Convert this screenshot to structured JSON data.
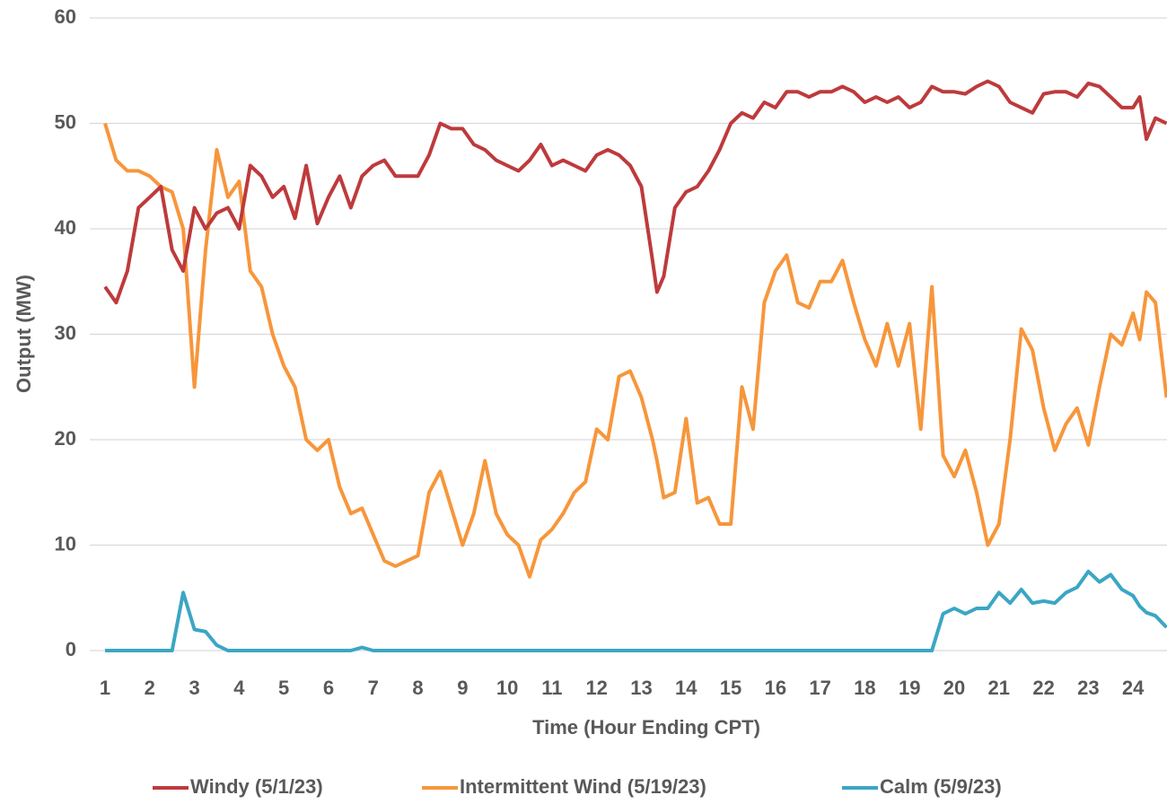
{
  "chart_data": {
    "type": "line",
    "x_label": "Time (Hour Ending CPT)",
    "y_label": "Output (MW)",
    "x": [
      1,
      1.25,
      1.5,
      1.75,
      2,
      2.25,
      2.5,
      2.75,
      3,
      3.25,
      3.5,
      3.75,
      4,
      4.25,
      4.5,
      4.75,
      5,
      5.25,
      5.5,
      5.75,
      6,
      6.25,
      6.5,
      6.75,
      7,
      7.25,
      7.5,
      7.75,
      8,
      8.25,
      8.5,
      8.75,
      9,
      9.25,
      9.5,
      9.75,
      10,
      10.25,
      10.5,
      10.75,
      11,
      11.25,
      11.5,
      11.75,
      12,
      12.25,
      12.5,
      12.75,
      13,
      13.25,
      13.35,
      13.5,
      13.75,
      14,
      14.25,
      14.5,
      14.75,
      15,
      15.25,
      15.5,
      15.75,
      16,
      16.25,
      16.5,
      16.75,
      17,
      17.25,
      17.5,
      17.75,
      18,
      18.25,
      18.5,
      18.75,
      19,
      19.25,
      19.5,
      19.75,
      20,
      20.25,
      20.5,
      20.75,
      21,
      21.25,
      21.5,
      21.75,
      22,
      22.25,
      22.5,
      22.75,
      23,
      23.25,
      23.5,
      23.75,
      24,
      24.15,
      24.3,
      24.5,
      24.75
    ],
    "series": [
      {
        "name": "Windy (5/1/23)",
        "color": "#be3a3c",
        "values": [
          34.5,
          33,
          36,
          42,
          43,
          44,
          38,
          36,
          42,
          40,
          41.5,
          42,
          40,
          46,
          45,
          43,
          44,
          41,
          46,
          40.5,
          43,
          45,
          42,
          45,
          46,
          46.5,
          45,
          45,
          45,
          47,
          50,
          49.5,
          49.5,
          48,
          47.5,
          46.5,
          46,
          45.5,
          46.5,
          48,
          46,
          46.5,
          46,
          45.5,
          47,
          47.5,
          47,
          46,
          44,
          37,
          34,
          35.5,
          42,
          43.5,
          44,
          45.5,
          47.5,
          50,
          51,
          50.5,
          52,
          51.5,
          53,
          53,
          52.5,
          53,
          53,
          53.5,
          53,
          52,
          52.5,
          52,
          52.5,
          51.5,
          52,
          53.5,
          53,
          53,
          52.8,
          53.5,
          54,
          53.5,
          52,
          51.5,
          51,
          52.8,
          53,
          53,
          52.5,
          53.8,
          53.5,
          52.5,
          51.5,
          51.5,
          52.5,
          48.5,
          50.5,
          50
        ]
      },
      {
        "name": "Intermittent Wind (5/19/23)",
        "color": "#f7963b",
        "values": [
          50,
          46.5,
          45.5,
          45.5,
          45,
          44,
          43.5,
          40,
          25,
          38,
          47.5,
          43,
          44.5,
          36,
          34.5,
          30,
          27,
          25,
          20,
          19,
          20,
          15.5,
          13,
          13.5,
          11,
          8.5,
          8,
          8.5,
          9,
          15,
          17,
          13.5,
          10,
          13,
          18,
          13,
          11,
          10,
          7,
          10.5,
          11.5,
          13,
          15,
          16,
          21,
          20,
          26,
          26.5,
          24,
          20,
          18,
          14.5,
          15,
          22,
          14,
          14.5,
          12,
          12,
          25,
          21,
          33,
          36,
          37.5,
          33,
          32.5,
          35,
          35,
          37,
          33,
          29.5,
          27,
          31,
          27,
          31,
          21,
          34.5,
          18.5,
          16.5,
          19,
          15,
          10,
          12,
          20,
          30.5,
          28.5,
          23,
          19,
          21.5,
          23,
          19.5,
          25,
          30,
          29,
          32,
          29.5,
          34,
          33,
          24
        ]
      },
      {
        "name": "Calm (5/9/23)",
        "color": "#3ba6c4",
        "values": [
          0,
          0,
          0,
          0,
          0,
          0,
          0,
          5.5,
          2,
          1.8,
          0.5,
          0,
          0,
          0,
          0,
          0,
          0,
          0,
          0,
          0,
          0,
          0,
          0,
          0.3,
          0,
          0,
          0,
          0,
          0,
          0,
          0,
          0,
          0,
          0,
          0,
          0,
          0,
          0,
          0,
          0,
          0,
          0,
          0,
          0,
          0,
          0,
          0,
          0,
          0,
          0,
          0,
          0,
          0,
          0,
          0,
          0,
          0,
          0,
          0,
          0,
          0,
          0,
          0,
          0,
          0,
          0,
          0,
          0,
          0,
          0,
          0,
          0,
          0,
          0,
          0,
          0,
          3.5,
          4,
          3.5,
          4,
          4,
          5.5,
          4.5,
          5.8,
          4.5,
          4.7,
          4.5,
          5.5,
          6,
          7.5,
          6.5,
          7.2,
          5.8,
          5.2,
          4.2,
          3.6,
          3.3,
          2.2
        ]
      }
    ],
    "xlim": [
      1,
      24.76
    ],
    "xticks": [
      1,
      2,
      3,
      4,
      5,
      6,
      7,
      8,
      9,
      10,
      11,
      12,
      13,
      14,
      15,
      16,
      17,
      18,
      19,
      20,
      21,
      22,
      23,
      24
    ],
    "ylim": [
      0,
      60
    ],
    "yticks": [
      0,
      10,
      20,
      30,
      40,
      50,
      60
    ],
    "grid": true,
    "legend": "bottom"
  }
}
